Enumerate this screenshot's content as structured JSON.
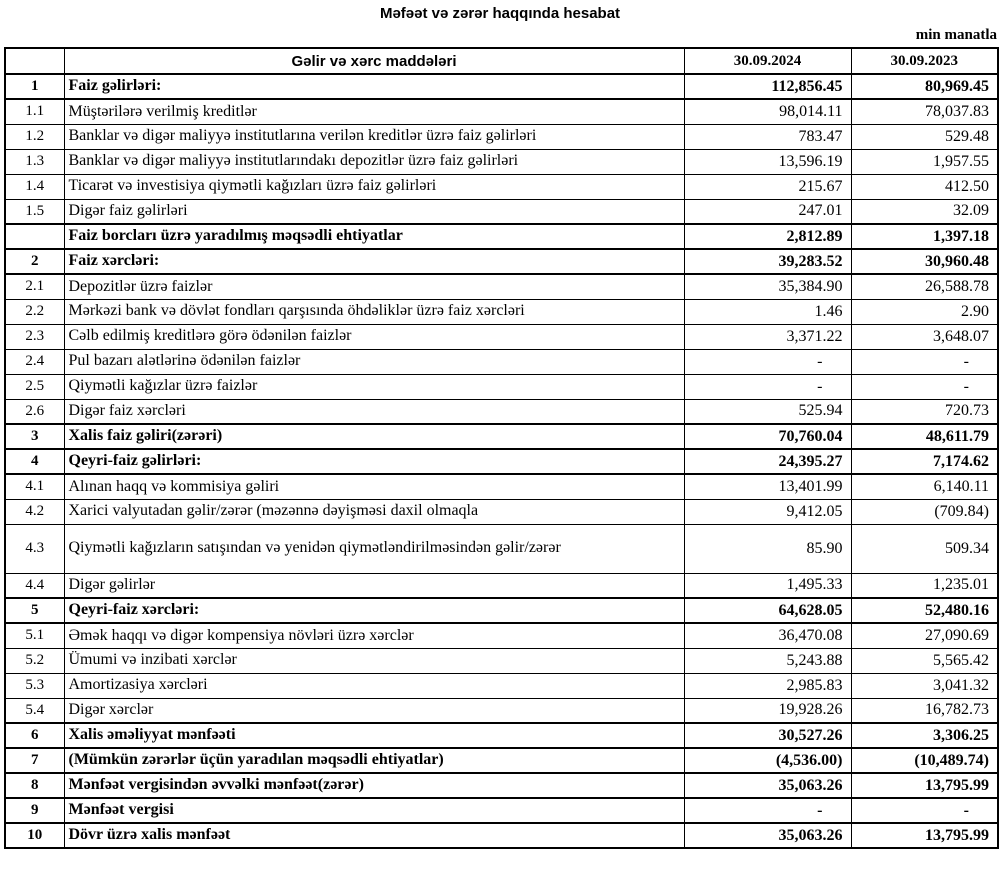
{
  "title": "Məfəət və zərər haqqında hesabat",
  "unit_label": "min manatla",
  "table": {
    "header": {
      "items": "Gəlir və xərc maddələri",
      "period_1": "30.09.2024",
      "period_2": "30.09.2023"
    },
    "rows": [
      {
        "num": "1",
        "label": "Faiz gəlirləri:",
        "v2024": "112,856.45",
        "v2023": "80,969.45",
        "bold": true
      },
      {
        "num": "1.1",
        "label": "Müştərilərə verilmiş kreditlər",
        "v2024": "98,014.11",
        "v2023": "78,037.83"
      },
      {
        "num": "1.2",
        "label": "Banklar və digər maliyyə institutlarına verilən kreditlər üzrə faiz gəlirləri",
        "v2024": "783.47",
        "v2023": "529.48"
      },
      {
        "num": "1.3",
        "label": "Banklar və digər maliyyə institutlarındakı depozitlər üzrə faiz gəlirləri",
        "v2024": "13,596.19",
        "v2023": "1,957.55"
      },
      {
        "num": "1.4",
        "label": "Ticarət və investisiya qiymətli kağızları üzrə faiz gəlirləri",
        "v2024": "215.67",
        "v2023": "412.50"
      },
      {
        "num": "1.5",
        "label": "Digər faiz gəlirləri",
        "v2024": "247.01",
        "v2023": "32.09"
      },
      {
        "num": "",
        "label": "Faiz borcları üzrə yaradılmış məqsədli ehtiyatlar",
        "v2024": "2,812.89",
        "v2023": "1,397.18",
        "bold": true
      },
      {
        "num": "2",
        "label": "Faiz xərcləri:",
        "v2024": "39,283.52",
        "v2023": "30,960.48",
        "bold": true
      },
      {
        "num": "2.1",
        "label": "Depozitlər üzrə faizlər",
        "v2024": "35,384.90",
        "v2023": "26,588.78"
      },
      {
        "num": "2.2",
        "label": "Mərkəzi bank və dövlət fondları qarşısında öhdəliklər üzrə faiz xərcləri",
        "v2024": "1.46",
        "v2023": "2.90"
      },
      {
        "num": "2.3",
        "label": "Cəlb edilmiş kreditlərə görə ödənilən faizlər",
        "v2024": "3,371.22",
        "v2023": "3,648.07"
      },
      {
        "num": "2.4",
        "label": "Pul bazarı alətlərinə ödənilən faizlər",
        "v2024": "-",
        "v2023": "-"
      },
      {
        "num": "2.5",
        "label": "Qiymətli kağızlar üzrə faizlər",
        "v2024": "-",
        "v2023": "-"
      },
      {
        "num": "2.6",
        "label": "Digər faiz xərcləri",
        "v2024": "525.94",
        "v2023": "720.73"
      },
      {
        "num": "3",
        "label": "Xalis faiz gəliri(zərəri)",
        "v2024": "70,760.04",
        "v2023": "48,611.79",
        "bold": true
      },
      {
        "num": "4",
        "label": "Qeyri-faiz gəlirləri:",
        "v2024": "24,395.27",
        "v2023": "7,174.62",
        "bold": true
      },
      {
        "num": "4.1",
        "label": "Alınan haqq və kommisiya gəliri",
        "v2024": "13,401.99",
        "v2023": "6,140.11"
      },
      {
        "num": "4.2",
        "label": "Xarici valyutadan gəlir/zərər (məzənnə dəyişməsi daxil olmaqla",
        "v2024": "9,412.05",
        "v2023": "(709.84)"
      },
      {
        "num": "4.3",
        "label": "Qiymətli kağızların satışından və yenidən qiymətləndirilməsindən gəlir/zərər",
        "v2024": "85.90",
        "v2023": "509.34",
        "tall": true
      },
      {
        "num": "4.4",
        "label": "Digər gəlirlər",
        "v2024": "1,495.33",
        "v2023": "1,235.01"
      },
      {
        "num": "5",
        "label": "Qeyri-faiz xərcləri:",
        "v2024": "64,628.05",
        "v2023": "52,480.16",
        "bold": true
      },
      {
        "num": "5.1",
        "label": "Əmək haqqı və digər kompensiya növləri üzrə xərclər",
        "v2024": "36,470.08",
        "v2023": "27,090.69"
      },
      {
        "num": "5.2",
        "label": "Ümumi və inzibati xərclər",
        "v2024": "5,243.88",
        "v2023": "5,565.42"
      },
      {
        "num": "5.3",
        "label": "Amortizasiya xərcləri",
        "v2024": "2,985.83",
        "v2023": "3,041.32"
      },
      {
        "num": "5.4",
        "label": "Digər xərclər",
        "v2024": "19,928.26",
        "v2023": "16,782.73"
      },
      {
        "num": "6",
        "label": "Xalis əməliyyat mənfəəti",
        "v2024": "30,527.26",
        "v2023": "3,306.25",
        "bold": true
      },
      {
        "num": "7",
        "label": "(Mümkün zərərlər üçün yaradılan məqsədli ehtiyatlar)",
        "v2024": "(4,536.00)",
        "v2023": "(10,489.74)",
        "bold": true
      },
      {
        "num": "8",
        "label": "Mənfəət vergisindən əvvəlki mənfəət(zərər)",
        "v2024": "35,063.26",
        "v2023": "13,795.99",
        "bold": true
      },
      {
        "num": "9",
        "label": "Mənfəət vergisi",
        "v2024": "-",
        "v2023": "-",
        "bold": true
      },
      {
        "num": "10",
        "label": "Dövr üzrə xalis mənfəət",
        "v2024": "35,063.26",
        "v2023": "13,795.99",
        "bold": true
      }
    ]
  }
}
